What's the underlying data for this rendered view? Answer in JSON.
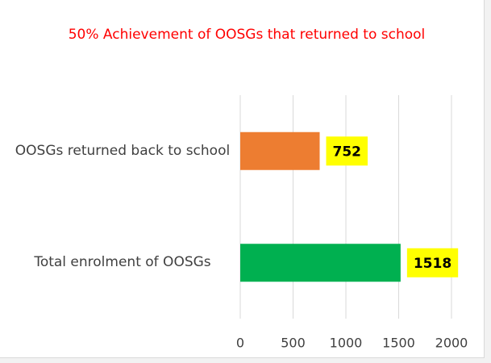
{
  "chart_data": {
    "type": "bar",
    "orientation": "horizontal",
    "title": "50% Achievement of OOSGs that returned to school",
    "categories": [
      "OOSGs returned back to school",
      "Total enrolment of OOSGs"
    ],
    "values": [
      752,
      1518
    ],
    "colors": [
      "#ed7d31",
      "#00b050"
    ],
    "label_background": "#ffff00",
    "xlim": [
      0,
      2000
    ],
    "xticks": [
      0,
      500,
      1000,
      1500,
      2000
    ],
    "grid": true
  }
}
